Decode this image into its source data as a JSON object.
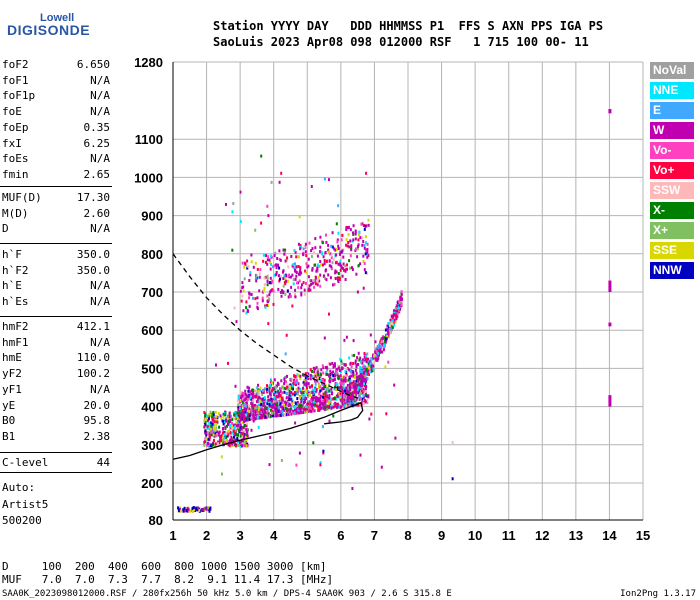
{
  "logo": {
    "line1": "Lowell",
    "line2": "DIGISONDE"
  },
  "header": {
    "line1": "Station YYYY DAY   DDD HHMMSS P1  FFS S AXN PPS IGA PS",
    "line2": "SaoLuis 2023 Apr08 098 012000 RSF   1 715 100 00- 11"
  },
  "params": {
    "group1": [
      {
        "name": "foF2",
        "value": "6.650"
      },
      {
        "name": "foF1",
        "value": "N/A"
      },
      {
        "name": "foF1p",
        "value": "N/A"
      },
      {
        "name": "foE",
        "value": "N/A"
      },
      {
        "name": "foEp",
        "value": "0.35"
      },
      {
        "name": "fxI",
        "value": "6.25"
      },
      {
        "name": "foEs",
        "value": "N/A"
      },
      {
        "name": "fmin",
        "value": "2.65"
      }
    ],
    "group2": [
      {
        "name": "MUF(D)",
        "value": "17.30"
      },
      {
        "name": "M(D)",
        "value": "2.60"
      },
      {
        "name": "D",
        "value": "N/A"
      }
    ],
    "group3": [
      {
        "name": "h`F",
        "value": "350.0"
      },
      {
        "name": "h`F2",
        "value": "350.0"
      },
      {
        "name": "h`E",
        "value": "N/A"
      },
      {
        "name": "h`Es",
        "value": "N/A"
      }
    ],
    "group4": [
      {
        "name": "hmF2",
        "value": "412.1"
      },
      {
        "name": "hmF1",
        "value": "N/A"
      },
      {
        "name": "hmE",
        "value": "110.0"
      },
      {
        "name": "yF2",
        "value": "100.2"
      },
      {
        "name": "yF1",
        "value": "N/A"
      },
      {
        "name": "yE",
        "value": "20.0"
      },
      {
        "name": "B0",
        "value": "95.8"
      },
      {
        "name": "B1",
        "value": "2.38"
      }
    ],
    "group5": [
      {
        "name": "C-level",
        "value": "44"
      }
    ]
  },
  "auto": {
    "line1": "Auto:",
    "line2": "Artist5",
    "line3": "500200"
  },
  "legend": [
    {
      "label": "NoVal",
      "color": "#a0a0a0"
    },
    {
      "label": "NNE",
      "color": "#00e8ff"
    },
    {
      "label": "E",
      "color": "#40a8ff"
    },
    {
      "label": "W",
      "color": "#c000b0"
    },
    {
      "label": "Vo-",
      "color": "#ff40c0"
    },
    {
      "label": "Vo+",
      "color": "#ff0040"
    },
    {
      "label": "SSW",
      "color": "#ffb8b8"
    },
    {
      "label": "X-",
      "color": "#008000"
    },
    {
      "label": "X+",
      "color": "#80c060"
    },
    {
      "label": "SSE",
      "color": "#d8d800"
    },
    {
      "label": "NNW",
      "color": "#0000c0"
    }
  ],
  "footer": {
    "d_line": "D     100  200  400  600  800 1000 1500 3000 [km]",
    "muf_line": "MUF   7.0  7.0  7.3  7.7  8.2  9.1 11.4 17.3 [MHz]",
    "file_line": "SAA0K_2023098012000.RSF / 280fx256h 50 kHz 5.0 km / DPS-4 SAA0K 903 / 2.6 S 315.8 E",
    "version": "Ion2Png 1.3.17"
  },
  "chart_data": {
    "type": "scatter",
    "x_ticks": [
      1,
      2,
      3,
      4,
      5,
      6,
      7,
      8,
      9,
      10,
      11,
      12,
      13,
      14,
      15
    ],
    "y_ticks": [
      80,
      200,
      300,
      400,
      500,
      600,
      700,
      800,
      900,
      1000,
      1100,
      1280
    ],
    "xlim": [
      1,
      15
    ],
    "ylim": [
      80,
      1280
    ],
    "grid": true,
    "traces": [
      {
        "name": "dashed",
        "style": "dashed",
        "x": [
          1.0,
          1.5,
          2.0,
          2.5,
          3.0,
          3.5,
          4.0,
          4.5,
          5.0,
          5.5,
          6.0,
          6.3,
          6.6
        ],
        "y": [
          800,
          740,
          685,
          640,
          600,
          565,
          535,
          505,
          480,
          460,
          440,
          428,
          420
        ]
      },
      {
        "name": "solid",
        "style": "solid",
        "x": [
          1.0,
          1.5,
          2.0,
          2.5,
          3.0,
          3.5,
          4.0,
          4.5,
          5.0,
          5.5,
          6.0,
          6.3,
          6.6,
          6.65,
          6.5,
          6.3,
          6.0,
          5.5
        ],
        "y": [
          262,
          272,
          287,
          300,
          312,
          322,
          332,
          343,
          357,
          372,
          390,
          400,
          410,
          390,
          372,
          365,
          360,
          355
        ]
      }
    ],
    "echo_clusters": [
      {
        "name": "F-trace main",
        "x": [
          2.9,
          6.8
        ],
        "y": [
          360,
          520
        ]
      },
      {
        "name": "F-trace upper rise",
        "x": [
          6.0,
          7.8
        ],
        "y": [
          430,
          700
        ]
      },
      {
        "name": "F multiple hop",
        "x": [
          3.0,
          6.8
        ],
        "y": [
          640,
          900
        ]
      },
      {
        "name": "low band",
        "x": [
          1.9,
          3.2
        ],
        "y": [
          290,
          420
        ]
      },
      {
        "name": "80 km band",
        "x": [
          1.1,
          2.1
        ],
        "y": [
          115,
          125
        ]
      },
      {
        "name": "14 MHz lines",
        "x": [
          14.0,
          14.0
        ],
        "y": [
          400,
          1160
        ]
      }
    ]
  }
}
